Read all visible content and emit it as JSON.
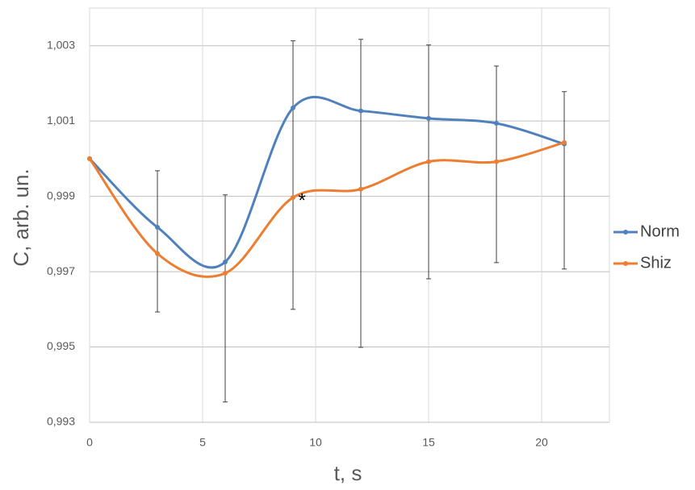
{
  "chart_data": {
    "type": "line",
    "x_label": "t, s",
    "y_label": "C, arb. un.",
    "x": [
      0,
      3,
      6,
      9,
      12,
      15,
      18,
      21
    ],
    "series": [
      {
        "name": "Norm",
        "color": "#4f81bd",
        "values": [
          1.0,
          0.99818,
          0.99726,
          1.00135,
          1.00127,
          1.00107,
          1.00094,
          1.00039
        ]
      },
      {
        "name": "Shiz",
        "color": "#ed7d31",
        "values": [
          1.0,
          0.99748,
          0.99696,
          0.99897,
          0.99919,
          0.99992,
          0.99992,
          1.00043
        ]
      }
    ],
    "error_bars": {
      "x": [
        3,
        6,
        9,
        12,
        15,
        18,
        21
      ],
      "low": [
        0.99593,
        0.99354,
        0.996,
        0.99499,
        0.99681,
        0.99724,
        0.99707
      ],
      "high": [
        0.99968,
        0.99904,
        1.00313,
        1.00317,
        1.00302,
        1.00246,
        1.00178
      ],
      "color": "#404040"
    },
    "annotations": [
      {
        "text": "*",
        "x": 9.4,
        "y": 0.99895
      }
    ],
    "smooth": true,
    "xlim": [
      0,
      23
    ],
    "ylim": [
      0.993,
      1.004
    ],
    "xticks": [
      0,
      5,
      10,
      15,
      20
    ],
    "yticks": [
      {
        "value": 0.993,
        "label": "0,993"
      },
      {
        "value": 0.995,
        "label": "0,995"
      },
      {
        "value": 0.997,
        "label": "0,997"
      },
      {
        "value": 0.999,
        "label": "0,999"
      },
      {
        "value": 1.001,
        "label": "1,001"
      },
      {
        "value": 1.003,
        "label": "1,003"
      }
    ],
    "grid": true,
    "legend": "right"
  }
}
